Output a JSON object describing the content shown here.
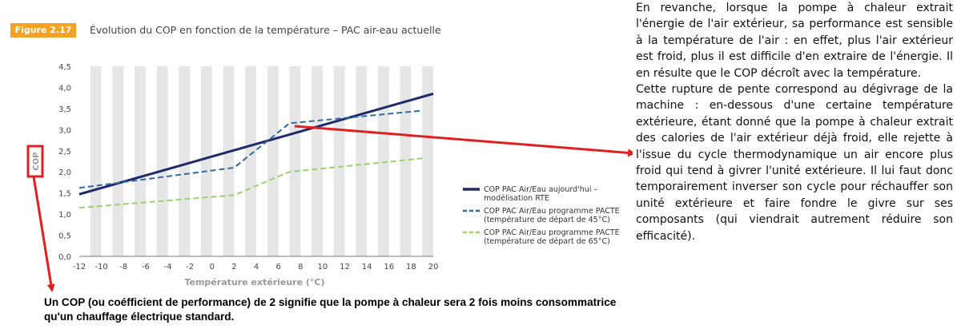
{
  "figure": {
    "badge": "Figure 2.17",
    "title": "Évolution du COP en fonction de la température – PAC air-eau actuelle"
  },
  "chart_data": {
    "type": "line",
    "xlabel": "Température extérieure (°C)",
    "ylabel": "COP",
    "xlim": [
      -12,
      20
    ],
    "ylim": [
      0,
      4.5
    ],
    "x_ticks": [
      "-12",
      "-10",
      "-8",
      "-6",
      "-4",
      "-2",
      "0",
      "2",
      "4",
      "6",
      "8",
      "10",
      "12",
      "14",
      "16",
      "18",
      "20"
    ],
    "y_ticks": [
      "0,0",
      "0,5",
      "1,0",
      "1,5",
      "2,0",
      "2,5",
      "3,0",
      "3,5",
      "4,0",
      "4,5"
    ],
    "grid": "vertical alternating bands",
    "legend_position": "right",
    "series": [
      {
        "name": "COP PAC Air/Eau aujourd'hui – modélisation RTE",
        "color": "#1f2a6b",
        "style": "solid",
        "x": [
          -12,
          20
        ],
        "y": [
          1.47,
          3.85
        ]
      },
      {
        "name": "COP PAC Air/Eau programme PACTE (température de départ de 45°C)",
        "color": "#2e6b9e",
        "style": "dashed",
        "x": [
          -12,
          2,
          7,
          19
        ],
        "y": [
          1.62,
          2.1,
          3.15,
          3.45
        ]
      },
      {
        "name": "COP PAC Air/Eau programme PACTE (température de départ de 65°C)",
        "color": "#9bd16a",
        "style": "dashed",
        "x": [
          -12,
          2,
          7,
          19
        ],
        "y": [
          1.15,
          1.45,
          2.0,
          2.32
        ]
      }
    ],
    "legend_lines": [
      [
        "COP PAC Air/Eau aujourd'hui –",
        "modélisation RTE"
      ],
      [
        "COP PAC Air/Eau programme PACTE",
        "(température de départ de 45°C)"
      ],
      [
        "COP PAC Air/Eau programme PACTE",
        "(température de départ de 65°C)"
      ]
    ],
    "annotation_colors": {
      "arrow": "#e02020"
    }
  },
  "side_text": {
    "p1": "En revanche, lorsque la pompe à chaleur extrait l'énergie de l'air extérieur, sa performance est sensible à la température de l'air : en effet, plus l'air extérieur est froid, plus il est difficile d'en extraire de l'énergie. Il en résulte que le COP décroît avec la température.",
    "p2": "Cette rupture de pente correspond au dégivrage de la machine : en-dessous d'une certaine température extérieure, étant donné que la pompe à chaleur extrait des calories de l'air extérieur déjà froid, elle rejette à l'issue du cycle thermodynamique un air encore plus froid qui tend à givrer l'unité extérieure. Il lui faut donc temporairement inverser son cycle pour réchauffer son unité extérieure et faire fondre le givre sur ses composants (qui viendrait autrement réduire son efficacité)."
  },
  "footer": {
    "text": "Un COP (ou coéfficient de performance) de 2 signifie que la pompe à chaleur sera 2 fois moins consommatrice qu'un chauffage électrique standard."
  }
}
